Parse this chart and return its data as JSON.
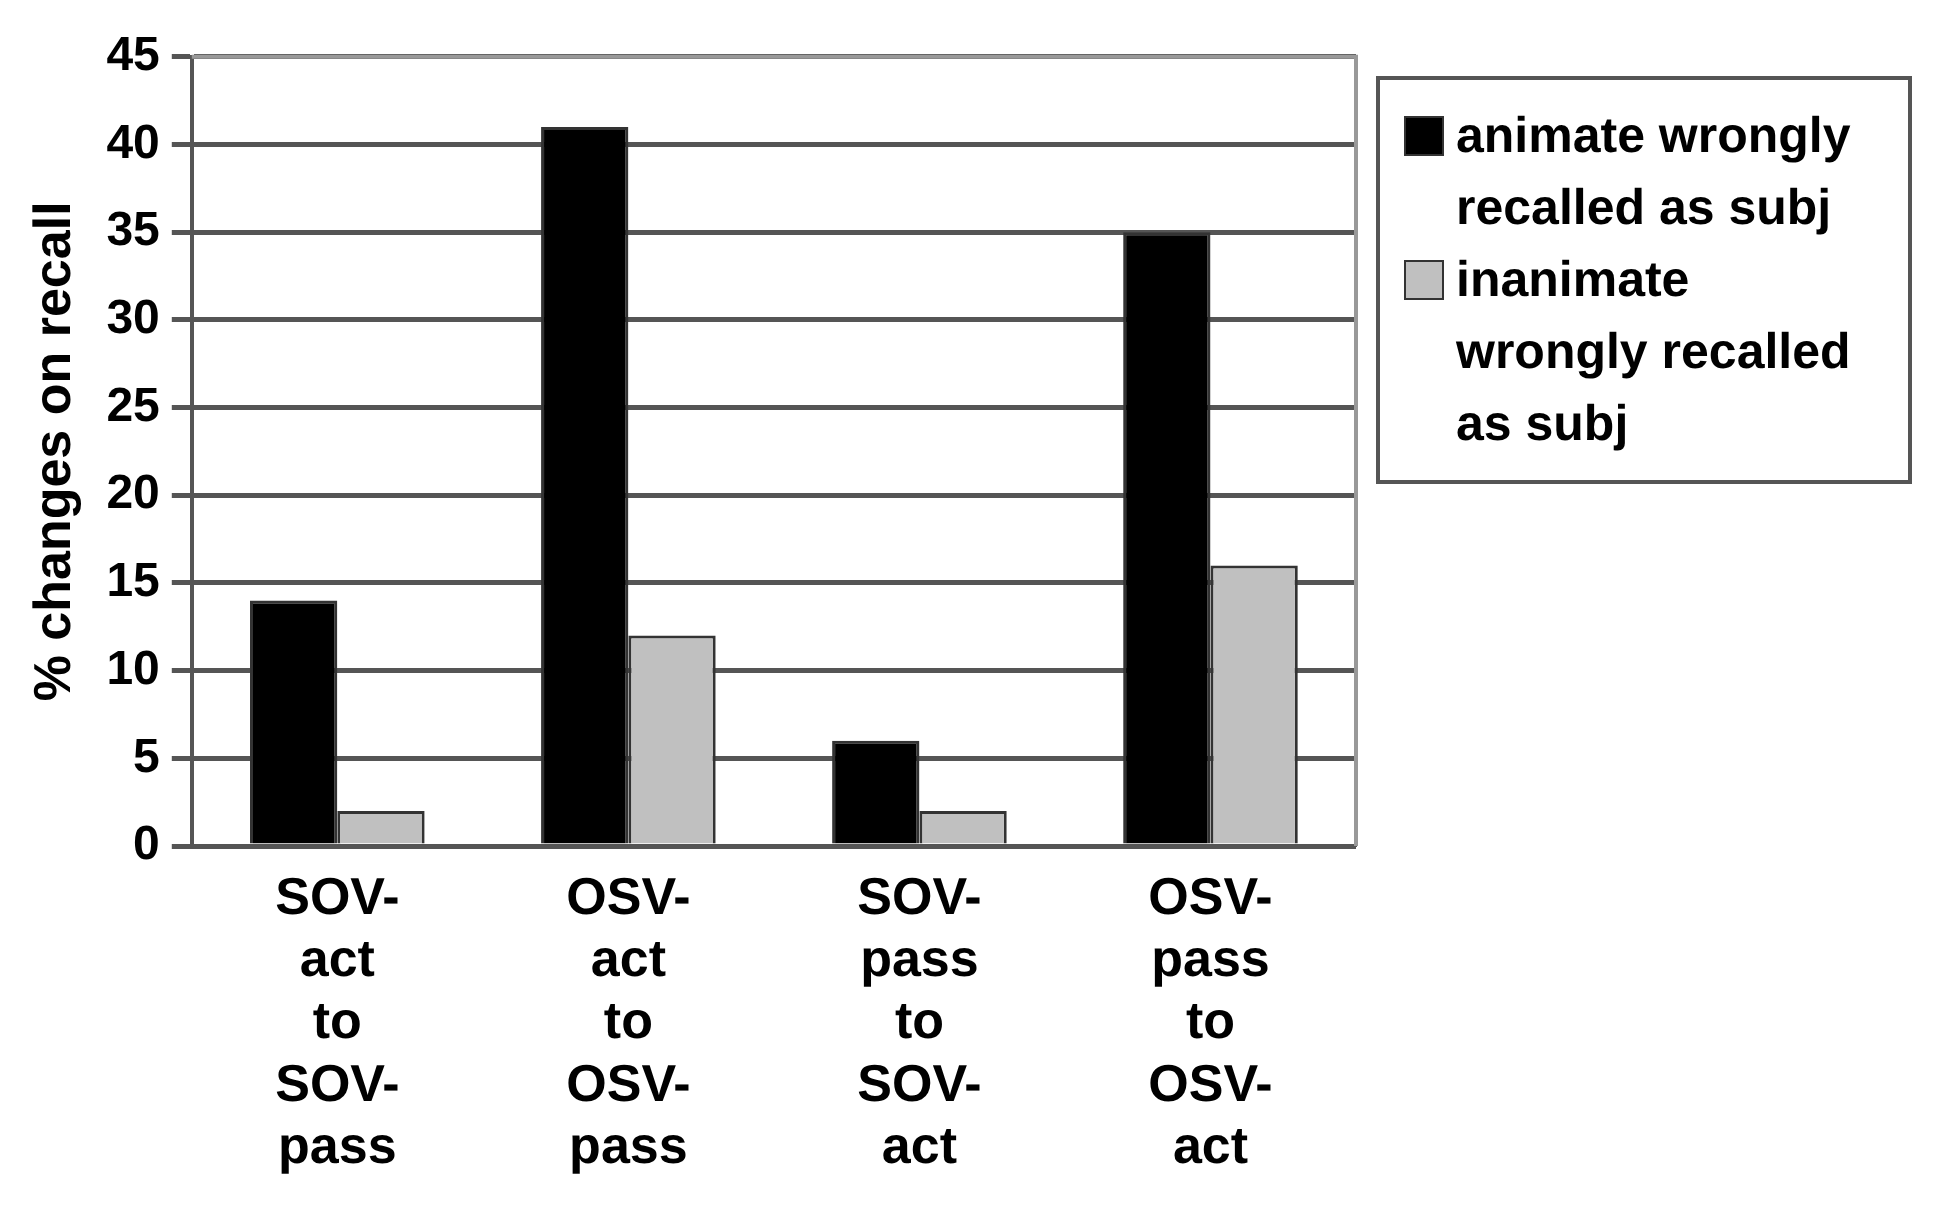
{
  "chart_data": {
    "type": "bar",
    "ylabel": "% changes on recall",
    "categories": [
      "SOV-act to SOV-pass",
      "OSV-act to OSV-pass",
      "SOV-pass to SOV-act",
      "OSV-pass to OSV-act"
    ],
    "series": [
      {
        "name": "animate wrongly recalled as subj",
        "color": "#000000",
        "values": [
          14,
          41,
          6,
          35
        ]
      },
      {
        "name": "inanimate wrongly recalled as subj",
        "color": "#c0c0c0",
        "values": [
          2,
          12,
          2,
          16
        ]
      }
    ],
    "ylim": [
      0,
      45
    ],
    "yticks": [
      0,
      5,
      10,
      15,
      20,
      25,
      30,
      35,
      40,
      45
    ],
    "grid": "y",
    "legend": "right"
  }
}
